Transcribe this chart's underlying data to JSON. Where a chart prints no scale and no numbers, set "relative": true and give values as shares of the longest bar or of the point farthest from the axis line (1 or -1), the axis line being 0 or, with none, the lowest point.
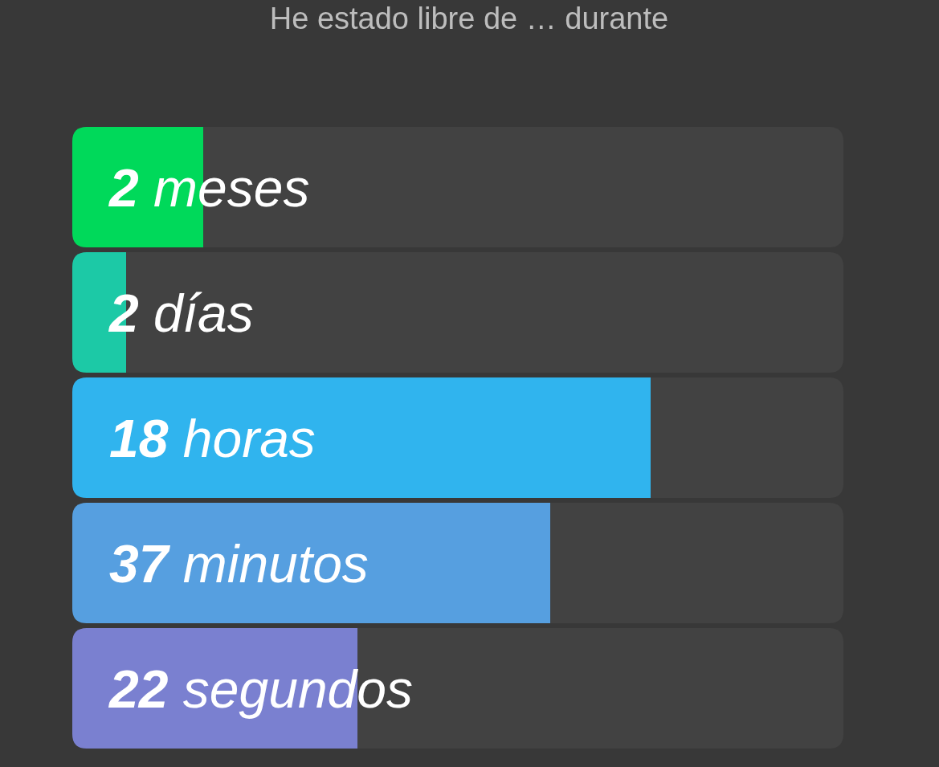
{
  "chart_data": {
    "type": "bar",
    "orientation": "horizontal",
    "stacked": true,
    "relative": true,
    "title": "He estado libre de … durante",
    "categories": [
      "2 meses",
      "2 días",
      "18 horas",
      "37 minutos",
      "22 segundos"
    ],
    "series": [
      {
        "values": [
          0.17,
          0.07,
          0.75,
          0.62,
          0.37
        ],
        "colors": [
          "#00d95a",
          "#1cc9a6",
          "#30b4ee",
          "#569fe0",
          "#7a80d0"
        ]
      },
      {
        "values": [
          0.83,
          0.93,
          0.25,
          0.38,
          0.63
        ],
        "color": "#424242"
      }
    ]
  }
}
